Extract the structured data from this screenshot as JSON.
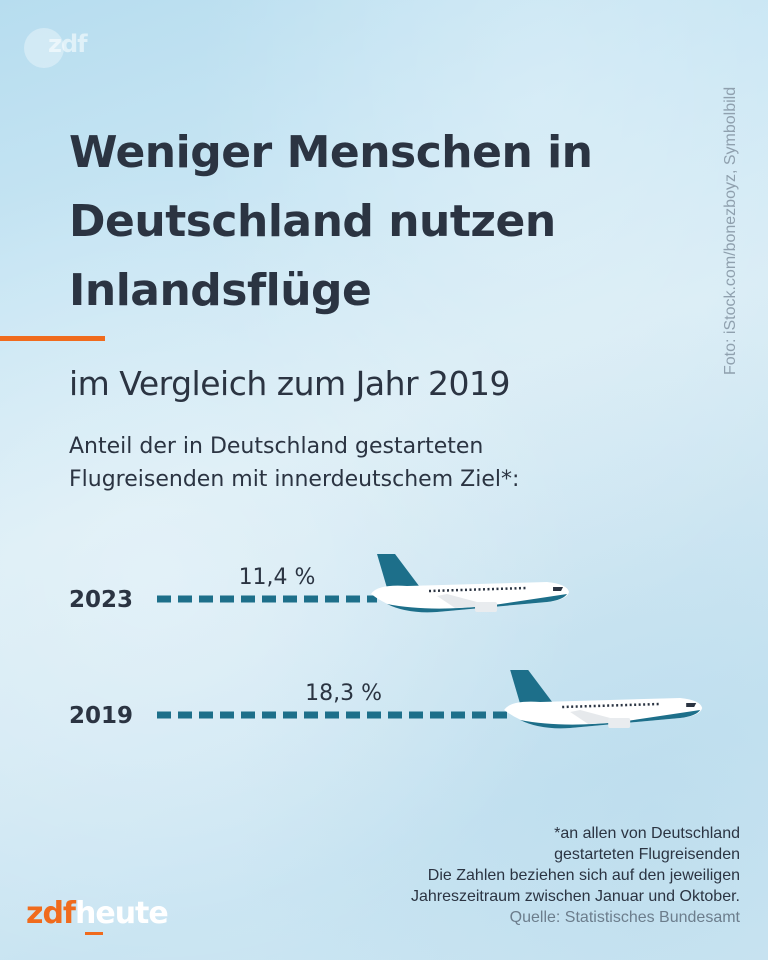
{
  "brand": {
    "watermark": "zdf",
    "logo_zdf": "zdf",
    "logo_heute": "heute",
    "accent_orange": "#f06b1d",
    "accent_teal": "#1d6f8a"
  },
  "header": {
    "title_lines": [
      "Weniger Menschen in",
      "Deutschland nutzen",
      "Inlandsflüge"
    ],
    "subtitle": "im Vergleich zum Jahr 2019",
    "description_lines": [
      "Anteil der in Deutschland gestarteten",
      "Flugreisenden mit innerdeutschem Ziel*:"
    ]
  },
  "photo_credit": "Foto: iStock.com/bonezboyz, Symbolbild",
  "chart_data": {
    "type": "bar",
    "orientation": "horizontal",
    "title": "Weniger Menschen in Deutschland nutzen Inlandsflüge",
    "subtitle": "Anteil der in Deutschland gestarteten Flugreisenden mit innerdeutschem Ziel*",
    "categories": [
      "2023",
      "2019"
    ],
    "values": [
      11.4,
      18.3
    ],
    "value_labels": [
      "11,4 %",
      "18,3 %"
    ],
    "unit": "%",
    "xlabel": "",
    "ylabel": "",
    "xlim": [
      0,
      20
    ],
    "grid": false,
    "bar_style": "dashed line ending in airplane icon"
  },
  "footnote": {
    "lines": [
      "*an allen von Deutschland",
      "gestarteten Flugreisenden",
      "Die Zahlen beziehen sich auf den jeweiligen",
      "Jahreszeitraum zwischen Januar und Oktober."
    ],
    "source": "Quelle: Statistisches Bundesamt"
  }
}
